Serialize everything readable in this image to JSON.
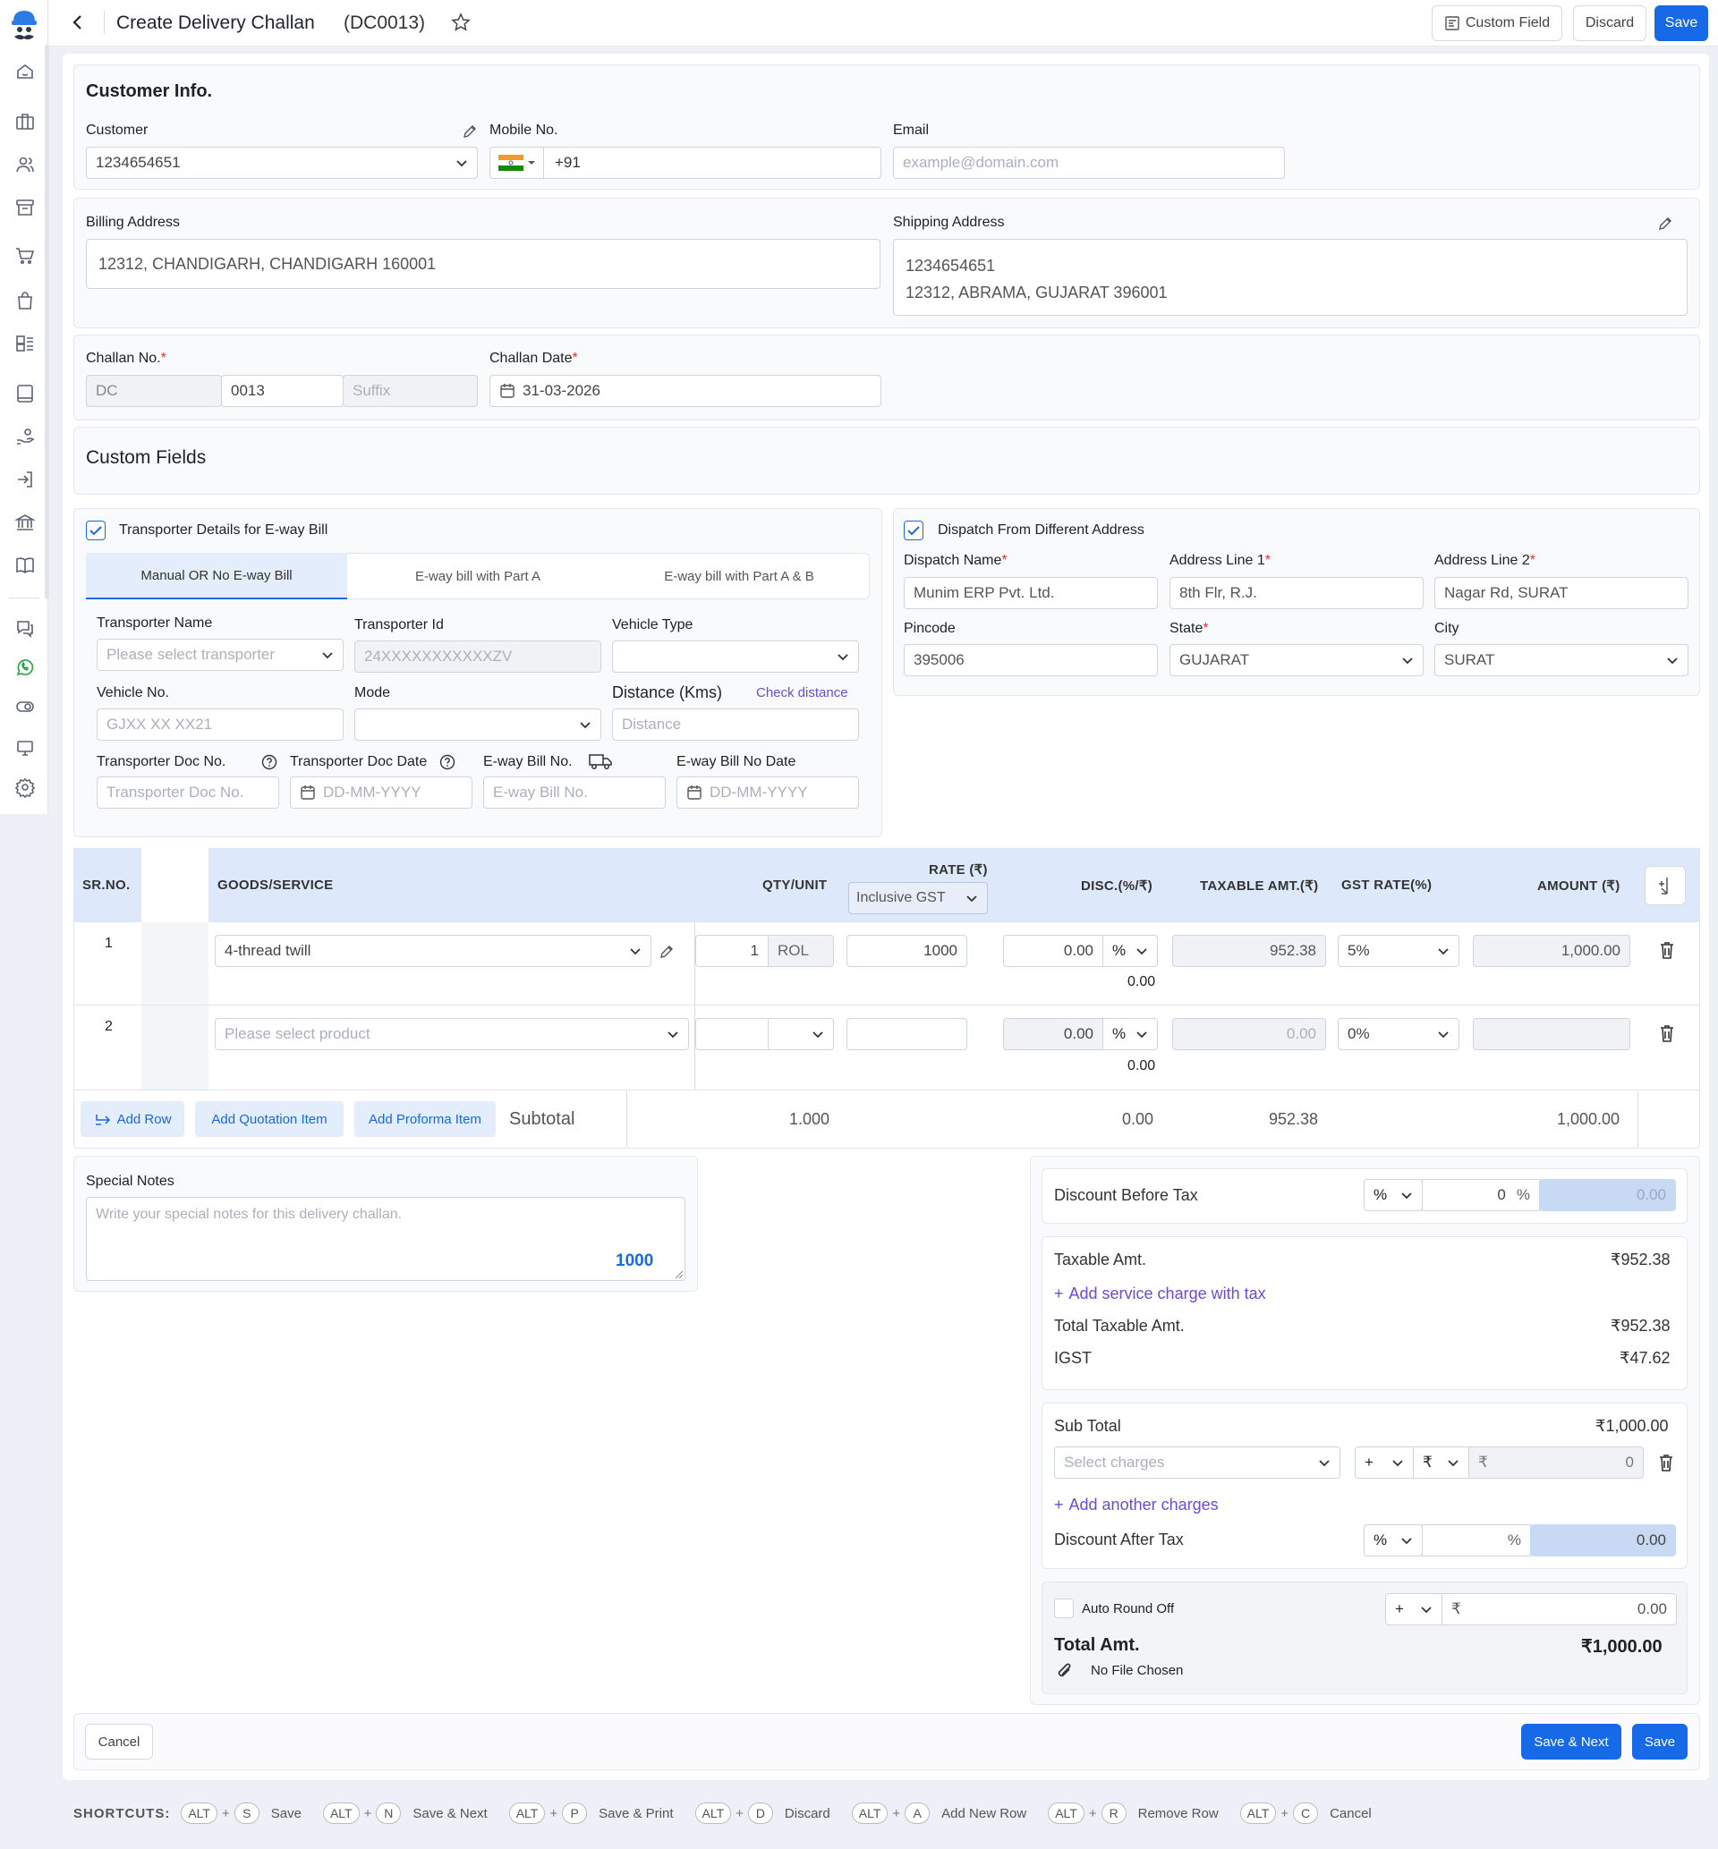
{
  "header": {
    "title": "Create Delivery Challan",
    "code": "(DC0013)",
    "custom_field": "Custom Field",
    "discard": "Discard",
    "save": "Save"
  },
  "customer_info": {
    "heading": "Customer Info.",
    "customer_label": "Customer",
    "customer_value": "1234654651",
    "mobile_label": "Mobile No.",
    "mobile_code": "+91",
    "email_label": "Email",
    "email_placeholder": "example@domain.com"
  },
  "address": {
    "billing_label": "Billing Address",
    "billing_value": "12312, CHANDIGARH, CHANDIGARH 160001",
    "shipping_label": "Shipping Address",
    "shipping_line1": "1234654651",
    "shipping_line2": "12312, ABRAMA, GUJARAT 396001"
  },
  "challan": {
    "no_label": "Challan No.",
    "prefix": "DC",
    "number": "0013",
    "suffix_placeholder": "Suffix",
    "date_label": "Challan Date",
    "date_value": "31-03-2026"
  },
  "custom_fields": {
    "heading": "Custom Fields"
  },
  "transporter": {
    "checkbox_label": "Transporter Details for E-way Bill",
    "tabs": [
      "Manual OR No E-way Bill",
      "E-way bill with Part A",
      "E-way bill with Part A & B"
    ],
    "name_label": "Transporter Name",
    "name_placeholder": "Please select transporter",
    "id_label": "Transporter Id",
    "id_placeholder": "24XXXXXXXXXXXZV",
    "vehicle_type_label": "Vehicle Type",
    "vehicle_no_label": "Vehicle No.",
    "vehicle_no_placeholder": "GJXX XX XX21",
    "mode_label": "Mode",
    "distance_label": "Distance (Kms)",
    "check_distance": "Check distance",
    "distance_placeholder": "Distance",
    "doc_no_label": "Transporter Doc No.",
    "doc_no_placeholder": "Transporter Doc No.",
    "doc_date_label": "Transporter Doc Date",
    "doc_date_placeholder": "DD-MM-YYYY",
    "eway_no_label": "E-way Bill No.",
    "eway_no_placeholder": "E-way Bill No.",
    "eway_date_label": "E-way Bill No Date",
    "eway_date_placeholder": "DD-MM-YYYY"
  },
  "dispatch": {
    "checkbox_label": "Dispatch From Different Address",
    "name_label": "Dispatch Name",
    "name_value": "Munim ERP Pvt. Ltd.",
    "line1_label": "Address Line 1",
    "line1_value": "8th Flr, R.J.",
    "line2_label": "Address Line 2",
    "line2_value": "Nagar Rd, SURAT",
    "pincode_label": "Pincode",
    "pincode_value": "395006",
    "state_label": "State",
    "state_value": "GUJARAT",
    "city_label": "City",
    "city_value": "SURAT"
  },
  "table": {
    "headers": {
      "sr": "SR.NO.",
      "goods": "GOODS/SERVICE",
      "qty": "QTY/UNIT",
      "rate": "RATE (₹)",
      "rate_mode": "Inclusive GST",
      "disc": "DISC.(%/₹)",
      "taxable": "TAXABLE AMT.(₹)",
      "gst": "GST RATE(%)",
      "amount": "AMOUNT (₹)"
    },
    "rows": [
      {
        "sr": "1",
        "product": "4-thread twill",
        "qty": "1",
        "unit": "ROL",
        "rate": "1000",
        "disc": "0.00",
        "disc_type": "%",
        "disc_amt": "0.00",
        "taxable": "952.38",
        "gst": "5%",
        "amount": "1,000.00"
      },
      {
        "sr": "2",
        "product": "Please select product",
        "qty": "",
        "unit": "",
        "rate": "",
        "disc": "0.00",
        "disc_type": "%",
        "disc_amt": "0.00",
        "taxable": "0.00",
        "gst": "0%",
        "amount": ""
      }
    ],
    "add_row": "Add Row",
    "add_quotation": "Add Quotation Item",
    "add_proforma": "Add Proforma Item",
    "subtotal_label": "Subtotal",
    "subtotal_qty": "1.000",
    "subtotal_disc": "0.00",
    "subtotal_taxable": "952.38",
    "subtotal_amount": "1,000.00"
  },
  "notes": {
    "label": "Special Notes",
    "placeholder": "Write your special notes for this delivery challan.",
    "counter": "1000"
  },
  "summary": {
    "discount_before_tax": "Discount Before Tax",
    "dbt_type": "%",
    "dbt_value": "0",
    "dbt_unit": "%",
    "dbt_amount": "0.00",
    "taxable_amt": "Taxable Amt.",
    "taxable_amt_value": "₹952.38",
    "add_service_charge": "Add service charge with tax",
    "total_taxable": "Total Taxable Amt.",
    "total_taxable_value": "₹952.38",
    "igst": "IGST",
    "igst_value": "₹47.62",
    "sub_total": "Sub Total",
    "sub_total_value": "₹1,000.00",
    "select_charges": "Select charges",
    "charge_sign": "+",
    "charge_currency": "₹",
    "charge_symbol": "₹",
    "charge_value": "0",
    "add_another_charges": "Add another charges",
    "discount_after_tax": "Discount After Tax",
    "dat_type": "%",
    "dat_unit": "%",
    "dat_amount": "0.00",
    "auto_round_off": "Auto Round Off",
    "round_sign": "+",
    "round_symbol": "₹",
    "round_value": "0.00",
    "total_amt": "Total Amt.",
    "total_amt_value": "₹1,000.00",
    "no_file": "No File Chosen"
  },
  "footer": {
    "cancel": "Cancel",
    "save_next": "Save & Next",
    "save": "Save"
  },
  "shortcuts": {
    "title": "SHORTCUTS:",
    "items": [
      {
        "mod": "ALT",
        "key": "S",
        "label": "Save"
      },
      {
        "mod": "ALT",
        "key": "N",
        "label": "Save & Next"
      },
      {
        "mod": "ALT",
        "key": "P",
        "label": "Save & Print"
      },
      {
        "mod": "ALT",
        "key": "D",
        "label": "Discard"
      },
      {
        "mod": "ALT",
        "key": "A",
        "label": "Add New Row"
      },
      {
        "mod": "ALT",
        "key": "R",
        "label": "Remove Row"
      },
      {
        "mod": "ALT",
        "key": "C",
        "label": "Cancel"
      }
    ]
  },
  "colors": {
    "accent": "#1769e8",
    "table_header": "#dde9fb",
    "required": "#e23030",
    "link_purple": "#6a4cd6"
  }
}
